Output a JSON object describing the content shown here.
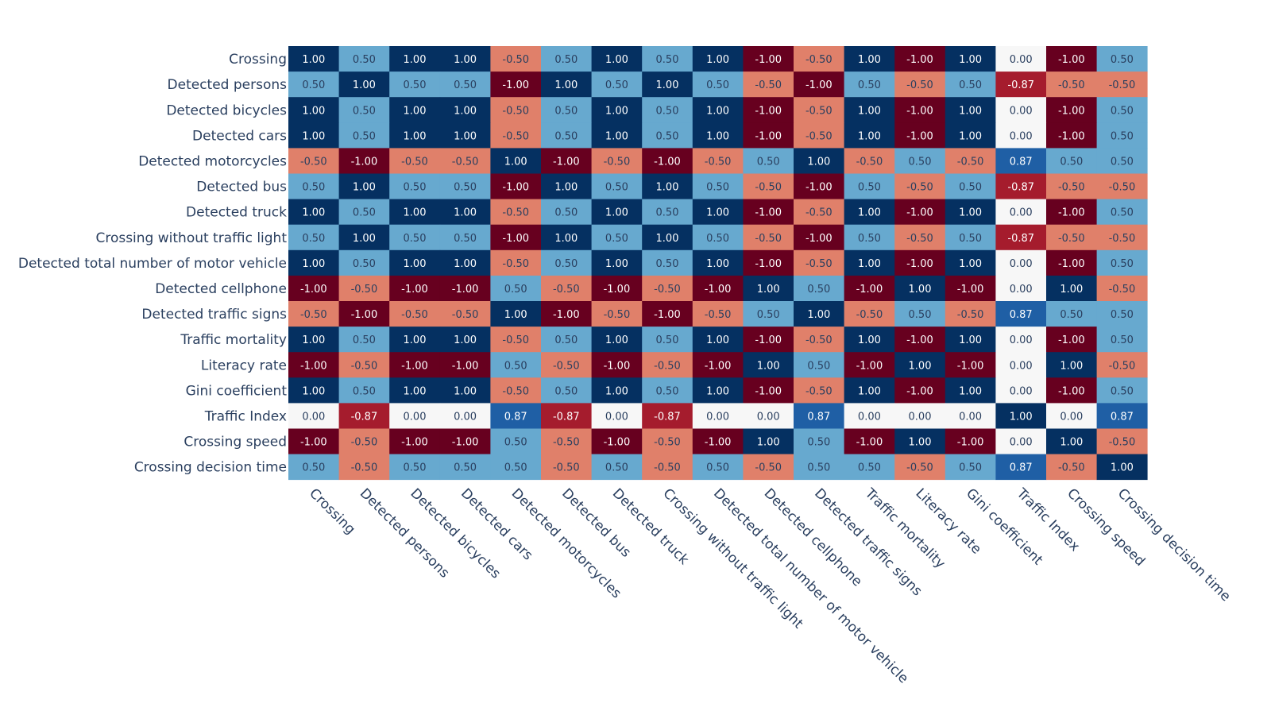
{
  "chart_data": {
    "type": "heatmap",
    "title": "",
    "xlabel": "",
    "ylabel": "",
    "value_format": "2 decimals",
    "zlim": [
      -1,
      1
    ],
    "colorscale": "RdBu",
    "x": [
      "Crossing",
      "Detected persons",
      "Detected bicycles",
      "Detected cars",
      "Detected motorcycles",
      "Detected bus",
      "Detected truck",
      "Crossing without traffic light",
      "Detected total number of motor vehicle",
      "Detected cellphone",
      "Detected traffic signs",
      "Traffic mortality",
      "Literacy rate",
      "Gini coefficient",
      "Traffic Index",
      "Crossing speed",
      "Crossing decision time"
    ],
    "y": [
      "Crossing",
      "Detected persons",
      "Detected bicycles",
      "Detected cars",
      "Detected motorcycles",
      "Detected bus",
      "Detected truck",
      "Crossing without traffic light",
      "Detected total number of motor vehicle",
      "Detected cellphone",
      "Detected traffic signs",
      "Traffic mortality",
      "Literacy rate",
      "Gini coefficient",
      "Traffic Index",
      "Crossing speed",
      "Crossing decision time"
    ],
    "z": [
      [
        1.0,
        0.5,
        1.0,
        1.0,
        -0.5,
        0.5,
        1.0,
        0.5,
        1.0,
        -1.0,
        -0.5,
        1.0,
        -1.0,
        1.0,
        0.0,
        -1.0,
        0.5
      ],
      [
        0.5,
        1.0,
        0.5,
        0.5,
        -1.0,
        1.0,
        0.5,
        1.0,
        0.5,
        -0.5,
        -1.0,
        0.5,
        -0.5,
        0.5,
        -0.87,
        -0.5,
        -0.5
      ],
      [
        1.0,
        0.5,
        1.0,
        1.0,
        -0.5,
        0.5,
        1.0,
        0.5,
        1.0,
        -1.0,
        -0.5,
        1.0,
        -1.0,
        1.0,
        0.0,
        -1.0,
        0.5
      ],
      [
        1.0,
        0.5,
        1.0,
        1.0,
        -0.5,
        0.5,
        1.0,
        0.5,
        1.0,
        -1.0,
        -0.5,
        1.0,
        -1.0,
        1.0,
        0.0,
        -1.0,
        0.5
      ],
      [
        -0.5,
        -1.0,
        -0.5,
        -0.5,
        1.0,
        -1.0,
        -0.5,
        -1.0,
        -0.5,
        0.5,
        1.0,
        -0.5,
        0.5,
        -0.5,
        0.87,
        0.5,
        0.5
      ],
      [
        0.5,
        1.0,
        0.5,
        0.5,
        -1.0,
        1.0,
        0.5,
        1.0,
        0.5,
        -0.5,
        -1.0,
        0.5,
        -0.5,
        0.5,
        -0.87,
        -0.5,
        -0.5
      ],
      [
        1.0,
        0.5,
        1.0,
        1.0,
        -0.5,
        0.5,
        1.0,
        0.5,
        1.0,
        -1.0,
        -0.5,
        1.0,
        -1.0,
        1.0,
        0.0,
        -1.0,
        0.5
      ],
      [
        0.5,
        1.0,
        0.5,
        0.5,
        -1.0,
        1.0,
        0.5,
        1.0,
        0.5,
        -0.5,
        -1.0,
        0.5,
        -0.5,
        0.5,
        -0.87,
        -0.5,
        -0.5
      ],
      [
        1.0,
        0.5,
        1.0,
        1.0,
        -0.5,
        0.5,
        1.0,
        0.5,
        1.0,
        -1.0,
        -0.5,
        1.0,
        -1.0,
        1.0,
        0.0,
        -1.0,
        0.5
      ],
      [
        -1.0,
        -0.5,
        -1.0,
        -1.0,
        0.5,
        -0.5,
        -1.0,
        -0.5,
        -1.0,
        1.0,
        0.5,
        -1.0,
        1.0,
        -1.0,
        0.0,
        1.0,
        -0.5
      ],
      [
        -0.5,
        -1.0,
        -0.5,
        -0.5,
        1.0,
        -1.0,
        -0.5,
        -1.0,
        -0.5,
        0.5,
        1.0,
        -0.5,
        0.5,
        -0.5,
        0.87,
        0.5,
        0.5
      ],
      [
        1.0,
        0.5,
        1.0,
        1.0,
        -0.5,
        0.5,
        1.0,
        0.5,
        1.0,
        -1.0,
        -0.5,
        1.0,
        -1.0,
        1.0,
        0.0,
        -1.0,
        0.5
      ],
      [
        -1.0,
        -0.5,
        -1.0,
        -1.0,
        0.5,
        -0.5,
        -1.0,
        -0.5,
        -1.0,
        1.0,
        0.5,
        -1.0,
        1.0,
        -1.0,
        0.0,
        1.0,
        -0.5
      ],
      [
        1.0,
        0.5,
        1.0,
        1.0,
        -0.5,
        0.5,
        1.0,
        0.5,
        1.0,
        -1.0,
        -0.5,
        1.0,
        -1.0,
        1.0,
        0.0,
        -1.0,
        0.5
      ],
      [
        0.0,
        -0.87,
        0.0,
        0.0,
        0.87,
        -0.87,
        0.0,
        -0.87,
        0.0,
        0.0,
        0.87,
        0.0,
        0.0,
        0.0,
        1.0,
        0.0,
        0.87
      ],
      [
        -1.0,
        -0.5,
        -1.0,
        -1.0,
        0.5,
        -0.5,
        -1.0,
        -0.5,
        -1.0,
        1.0,
        0.5,
        -1.0,
        1.0,
        -1.0,
        0.0,
        1.0,
        -0.5
      ],
      [
        0.5,
        -0.5,
        0.5,
        0.5,
        0.5,
        -0.5,
        0.5,
        -0.5,
        0.5,
        -0.5,
        0.5,
        0.5,
        -0.5,
        0.5,
        0.87,
        -0.5,
        1.0
      ]
    ],
    "colors": {
      "pos_1": "#053061",
      "pos_087": "#1f5fa5",
      "pos_05": "#67a9cf",
      "zero": "#f7f7f7",
      "neg_05": "#e0806a",
      "neg_087": "#a51c2d",
      "neg_1": "#67001f",
      "label": "#2a3f5f",
      "text_dark": "#2a3f5f",
      "text_light": "#ffffff"
    }
  }
}
